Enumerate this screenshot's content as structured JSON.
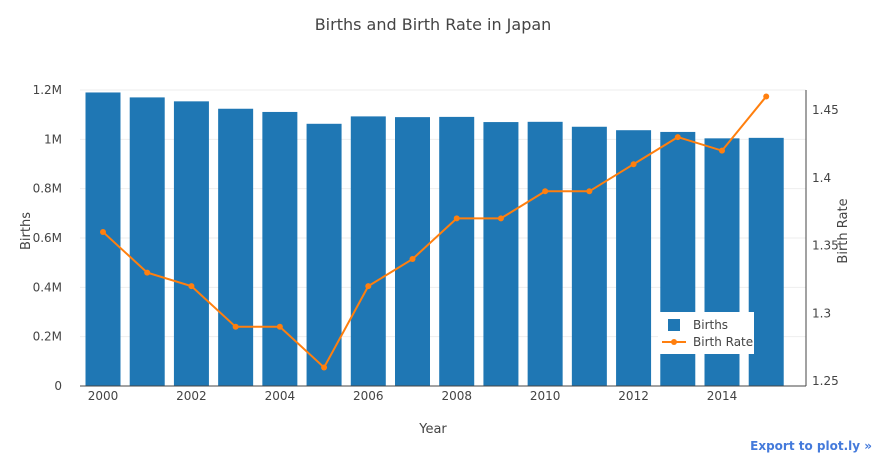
{
  "chart_data": {
    "type": "bar+line",
    "title": "Births and Birth Rate in Japan",
    "xlabel": "Year",
    "ylabel_left": "Births",
    "ylabel_right": "Birth Rate",
    "x": [
      2000,
      2001,
      2002,
      2003,
      2004,
      2005,
      2006,
      2007,
      2008,
      2009,
      2010,
      2011,
      2012,
      2013,
      2014,
      2015
    ],
    "x_ticks": [
      "2000",
      "2002",
      "2004",
      "2006",
      "2008",
      "2010",
      "2012",
      "2014"
    ],
    "ylim_left": [
      0,
      1200000
    ],
    "yticks_left": [
      "0",
      "0.2M",
      "0.4M",
      "0.6M",
      "0.8M",
      "1M",
      "1.2M"
    ],
    "ylim_right": [
      1.25,
      1.46
    ],
    "yticks_right": [
      "1.25",
      "1.3",
      "1.35",
      "1.4",
      "1.45"
    ],
    "series": [
      {
        "name": "Births",
        "type": "bar",
        "axis": "left",
        "color": "#1f77b4",
        "values": [
          1190000,
          1170000,
          1154000,
          1124000,
          1111000,
          1063000,
          1093000,
          1090000,
          1091000,
          1070000,
          1071000,
          1051000,
          1037000,
          1030000,
          1004000,
          1006000
        ]
      },
      {
        "name": "Birth Rate",
        "type": "line",
        "axis": "right",
        "color": "#ff7f0e",
        "values": [
          1.36,
          1.33,
          1.32,
          1.29,
          1.29,
          1.26,
          1.32,
          1.34,
          1.37,
          1.37,
          1.39,
          1.39,
          1.41,
          1.43,
          1.42,
          1.46
        ]
      }
    ],
    "grid": true,
    "legend_position": "bottom-right"
  },
  "export_label": "Export to plot.ly »"
}
